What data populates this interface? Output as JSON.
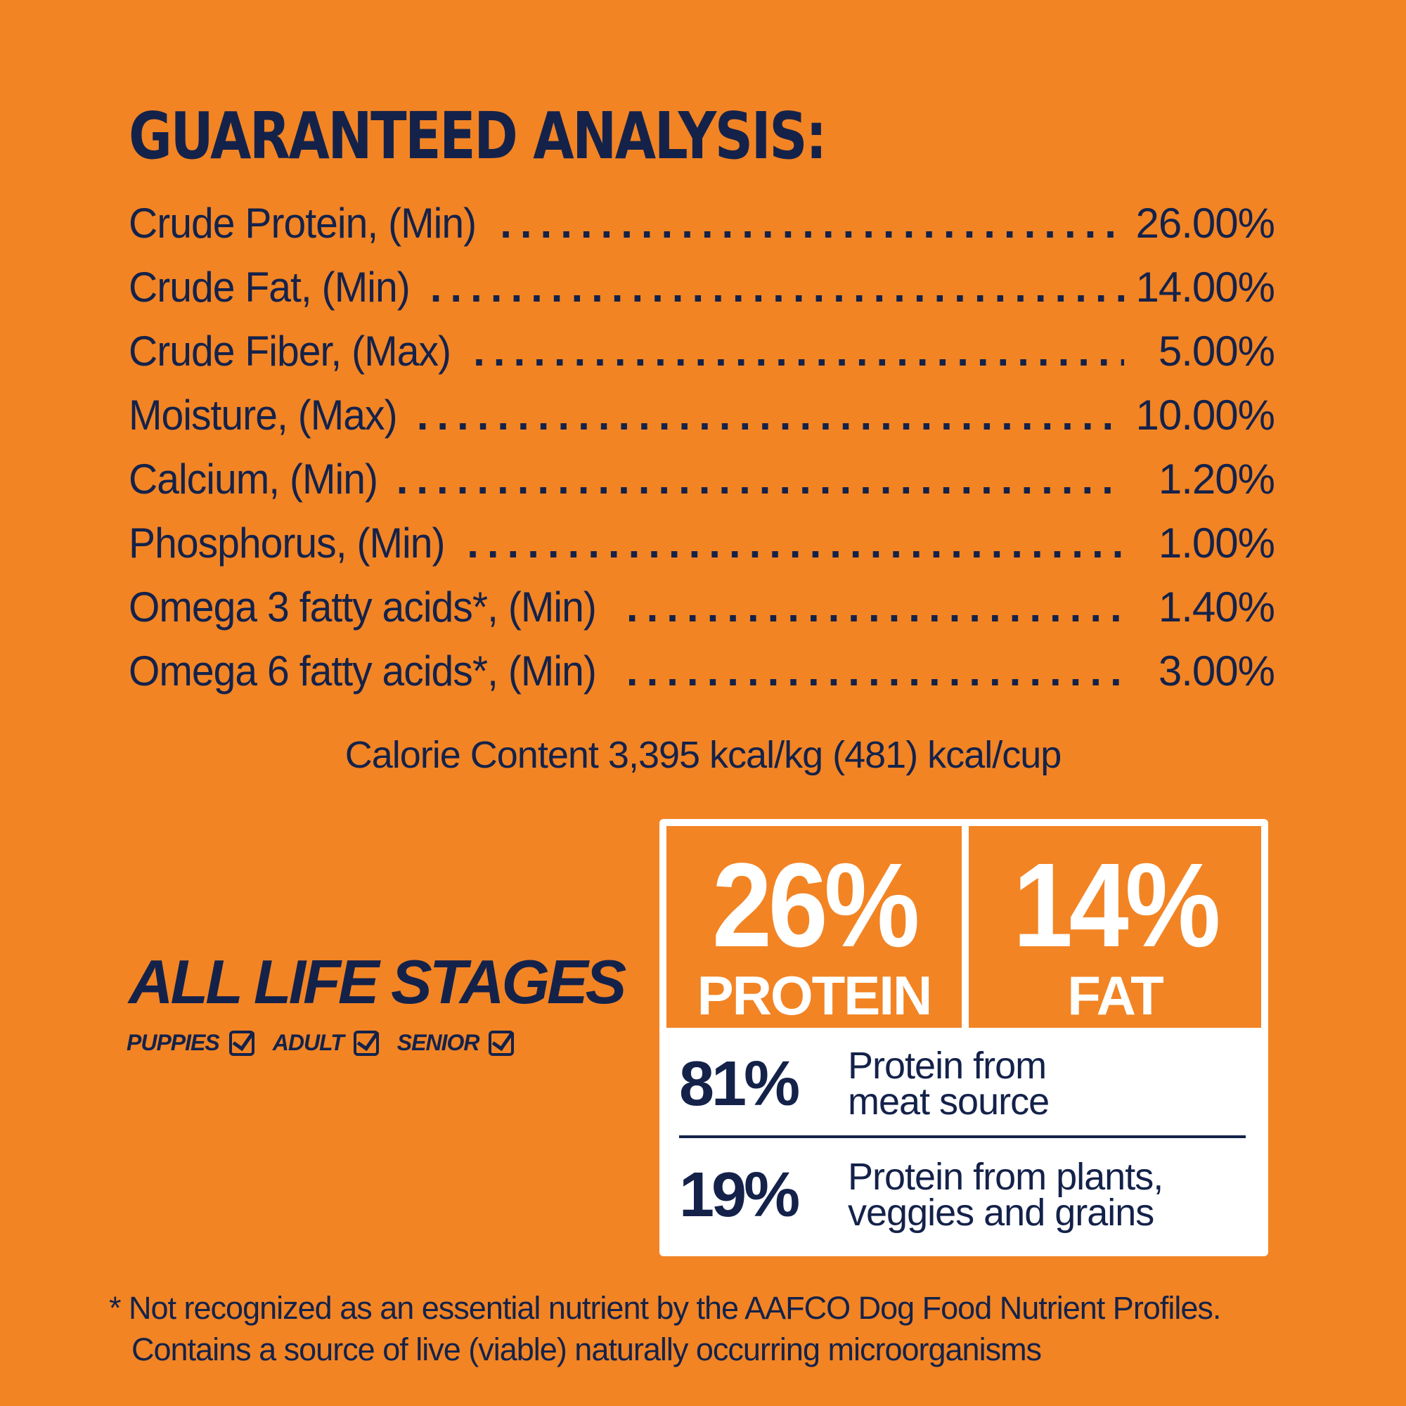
{
  "title": "GUARANTEED ANALYSIS:",
  "analysis": [
    {
      "label": "Crude Protein, (Min)",
      "value": "26.00%"
    },
    {
      "label": "Crude Fat, (Min)",
      "value": "14.00%"
    },
    {
      "label": "Crude Fiber, (Max)",
      "value": "5.00%"
    },
    {
      "label": "Moisture, (Max)",
      "value": "10.00%"
    },
    {
      "label": "Calcium, (Min)",
      "value": "1.20%"
    },
    {
      "label": "Phosphorus, (Min)",
      "value": "1.00%"
    },
    {
      "label": "Omega 3 fatty acids*, (Min)",
      "value": "1.40%"
    },
    {
      "label": "Omega 6 fatty acids*, (Min)",
      "value": "3.00%"
    }
  ],
  "calorie_content": "Calorie Content 3,395 kcal/kg (481) kcal/cup",
  "life_stages": {
    "title": "ALL LIFE STAGES",
    "items": [
      {
        "label": "PUPPIES",
        "checked": true
      },
      {
        "label": "ADULT",
        "checked": true
      },
      {
        "label": "SENIOR",
        "checked": true
      }
    ]
  },
  "highlights": {
    "protein": {
      "value": "26%",
      "label": "PROTEIN"
    },
    "fat": {
      "value": "14%",
      "label": "FAT"
    },
    "meat_source": {
      "value": "81%",
      "line1": "Protein from",
      "line2": "meat source"
    },
    "plant_source": {
      "value": "19%",
      "line1": "Protein from plants,",
      "line2": "veggies and grains"
    }
  },
  "footnote": {
    "line1": "* Not recognized as an essential nutrient by the AAFCO Dog Food Nutrient Profiles.",
    "line2": "Contains a source of live (viable) naturally occurring microorganisms"
  },
  "colors": {
    "background": "#f28424",
    "text": "#14224a",
    "panel": "#ffffff"
  }
}
